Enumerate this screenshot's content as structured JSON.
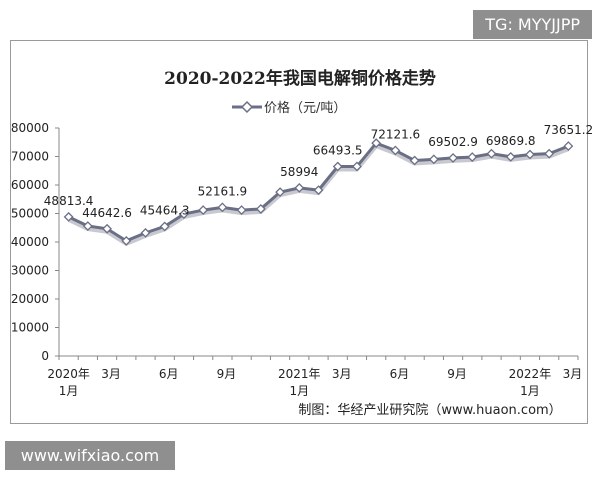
{
  "watermark_top": "TG: MYYJJPP",
  "watermark_bottom": "www.wifxiao.com",
  "chart_data": {
    "type": "line",
    "title": "2020-2022年我国电解铜价格走势",
    "legend": {
      "entries": [
        "价格（元/吨）"
      ],
      "placement": "top"
    },
    "source": "制图：华经产业研究院（www.huaon.com）",
    "ylim": [
      0,
      80000
    ],
    "yticks": [
      0,
      10000,
      20000,
      30000,
      40000,
      50000,
      60000,
      70000,
      80000
    ],
    "xtick_labels": [
      {
        "i": 0,
        "l1": "2020年",
        "l2": "1月"
      },
      {
        "i": 2,
        "l1": "3月"
      },
      {
        "i": 5,
        "l1": "6月"
      },
      {
        "i": 8,
        "l1": "9月"
      },
      {
        "i": 12,
        "l1": "2021年",
        "l2": "1月"
      },
      {
        "i": 14,
        "l1": "3月"
      },
      {
        "i": 17,
        "l1": "6月"
      },
      {
        "i": 20,
        "l1": "9月"
      },
      {
        "i": 24,
        "l1": "2022年",
        "l2": "1月"
      },
      {
        "i": 26,
        "l1": "3月"
      }
    ],
    "x": [
      "2020-01",
      "2020-02",
      "2020-03",
      "2020-04",
      "2020-05",
      "2020-06",
      "2020-07",
      "2020-08",
      "2020-09",
      "2020-10",
      "2020-11",
      "2020-12",
      "2021-01",
      "2021-02",
      "2021-03",
      "2021-04",
      "2021-05",
      "2021-06",
      "2021-07",
      "2021-08",
      "2021-09",
      "2021-10",
      "2021-11",
      "2021-12",
      "2022-01",
      "2022-02",
      "2022-03"
    ],
    "series": [
      {
        "name": "价格（元/吨）",
        "color": "#6b6f85",
        "values": [
          48813.4,
          45600,
          44642.6,
          40400,
          43200,
          45464.3,
          49800,
          51200,
          52161.9,
          51200,
          51600,
          57500,
          58994,
          58200,
          66493.5,
          66500,
          74700,
          72121.6,
          68600,
          69000,
          69502.9,
          69800,
          71000,
          69869.8,
          70700,
          71000,
          73651.2
        ]
      }
    ],
    "data_labels": [
      {
        "i": 0,
        "text": "48813.4"
      },
      {
        "i": 2,
        "text": "44642.6"
      },
      {
        "i": 5,
        "text": "45464.3"
      },
      {
        "i": 8,
        "text": "52161.9"
      },
      {
        "i": 12,
        "text": "58994"
      },
      {
        "i": 14,
        "text": "66493.5"
      },
      {
        "i": 17,
        "text": "72121.6"
      },
      {
        "i": 20,
        "text": "69502.9"
      },
      {
        "i": 23,
        "text": "69869.8"
      },
      {
        "i": 26,
        "text": "73651.2"
      }
    ],
    "grid": false
  }
}
